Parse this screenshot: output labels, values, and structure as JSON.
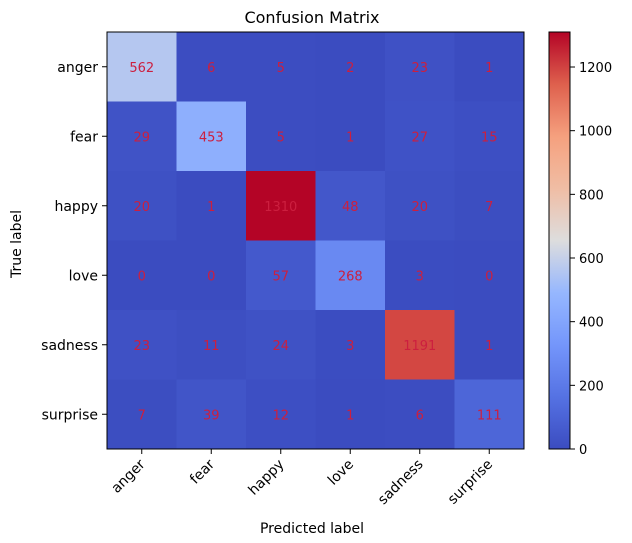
{
  "chart_data": {
    "type": "heatmap",
    "title": "Confusion Matrix",
    "xlabel": "Predicted label",
    "ylabel": "True label",
    "x_categories": [
      "anger",
      "fear",
      "happy",
      "love",
      "sadness",
      "surprise"
    ],
    "y_categories": [
      "anger",
      "fear",
      "happy",
      "love",
      "sadness",
      "surprise"
    ],
    "values": [
      [
        562,
        6,
        5,
        2,
        23,
        1
      ],
      [
        29,
        453,
        5,
        1,
        27,
        15
      ],
      [
        20,
        1,
        1310,
        48,
        20,
        7
      ],
      [
        0,
        0,
        57,
        268,
        3,
        0
      ],
      [
        23,
        11,
        24,
        3,
        1191,
        1
      ],
      [
        7,
        39,
        12,
        1,
        6,
        111
      ]
    ],
    "colormap": "coolwarm",
    "cell_text_color": "#cc1f3f",
    "color_range": [
      0,
      1310
    ],
    "colorbar_ticks": [
      "0",
      "200",
      "400",
      "600",
      "800",
      "1000",
      "1200"
    ],
    "colorbar_tick_values": [
      0,
      200,
      400,
      600,
      800,
      1000,
      1200
    ],
    "x_tick_rotation_deg": 45
  }
}
